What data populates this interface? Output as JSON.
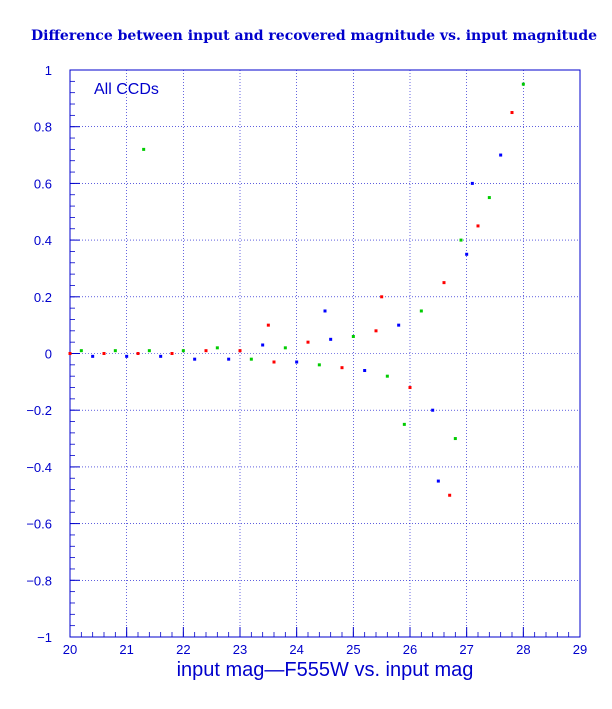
{
  "chart_data": {
    "type": "scatter",
    "title": "Difference between input and recovered magnitude vs. input magnitude",
    "annotation": "All CCDs",
    "xlabel": "input mag—F555W vs. input mag",
    "ylabel": "",
    "xlim": [
      20,
      29
    ],
    "ylim": [
      -1,
      1
    ],
    "xticks": [
      20,
      21,
      22,
      23,
      24,
      25,
      26,
      27,
      28,
      29
    ],
    "yticks": [
      1,
      0.8,
      0.6,
      0.4,
      0.2,
      0,
      -0.2,
      -0.4,
      -0.6,
      -0.8,
      -1
    ],
    "xtick_labels": [
      "20",
      "21",
      "22",
      "23",
      "24",
      "25",
      "26",
      "27",
      "28",
      "29"
    ],
    "ytick_labels": [
      "1",
      "0.8",
      "0.6",
      "0.4",
      "0.2",
      "0",
      "−0.2",
      "−0.4",
      "−0.6",
      "−0.8",
      "−1"
    ],
    "grid": true,
    "series_colors": [
      "#ff0000",
      "#00cc00",
      "#0000ff"
    ],
    "points": [
      [
        20.0,
        0.0
      ],
      [
        20.2,
        0.01
      ],
      [
        20.4,
        -0.01
      ],
      [
        20.6,
        0.0
      ],
      [
        20.8,
        0.01
      ],
      [
        21.0,
        -0.01
      ],
      [
        21.2,
        0.0
      ],
      [
        21.4,
        0.01
      ],
      [
        21.6,
        -0.01
      ],
      [
        21.8,
        0.0
      ],
      [
        22.0,
        0.01
      ],
      [
        22.2,
        -0.02
      ],
      [
        22.4,
        0.01
      ],
      [
        22.6,
        0.02
      ],
      [
        22.8,
        -0.02
      ],
      [
        23.0,
        0.01
      ],
      [
        23.2,
        -0.02
      ],
      [
        23.4,
        0.03
      ],
      [
        23.6,
        -0.03
      ],
      [
        23.8,
        0.02
      ],
      [
        24.0,
        -0.03
      ],
      [
        24.2,
        0.04
      ],
      [
        24.4,
        -0.04
      ],
      [
        24.6,
        0.05
      ],
      [
        24.8,
        -0.05
      ],
      [
        25.0,
        0.06
      ],
      [
        25.2,
        -0.06
      ],
      [
        25.4,
        0.08
      ],
      [
        25.6,
        -0.08
      ],
      [
        25.8,
        0.1
      ],
      [
        26.0,
        -0.12
      ],
      [
        26.2,
        0.15
      ],
      [
        26.4,
        -0.2
      ],
      [
        26.6,
        0.25
      ],
      [
        26.8,
        -0.3
      ],
      [
        27.0,
        0.35
      ],
      [
        27.2,
        0.45
      ],
      [
        27.4,
        0.55
      ],
      [
        27.6,
        0.7
      ],
      [
        27.8,
        0.85
      ],
      [
        28.0,
        0.95
      ],
      [
        26.5,
        -0.45
      ],
      [
        26.7,
        -0.5
      ],
      [
        26.9,
        0.4
      ],
      [
        27.1,
        0.6
      ],
      [
        25.5,
        0.2
      ],
      [
        25.9,
        -0.25
      ],
      [
        24.5,
        0.15
      ],
      [
        23.5,
        0.1
      ],
      [
        21.3,
        0.72
      ]
    ]
  }
}
